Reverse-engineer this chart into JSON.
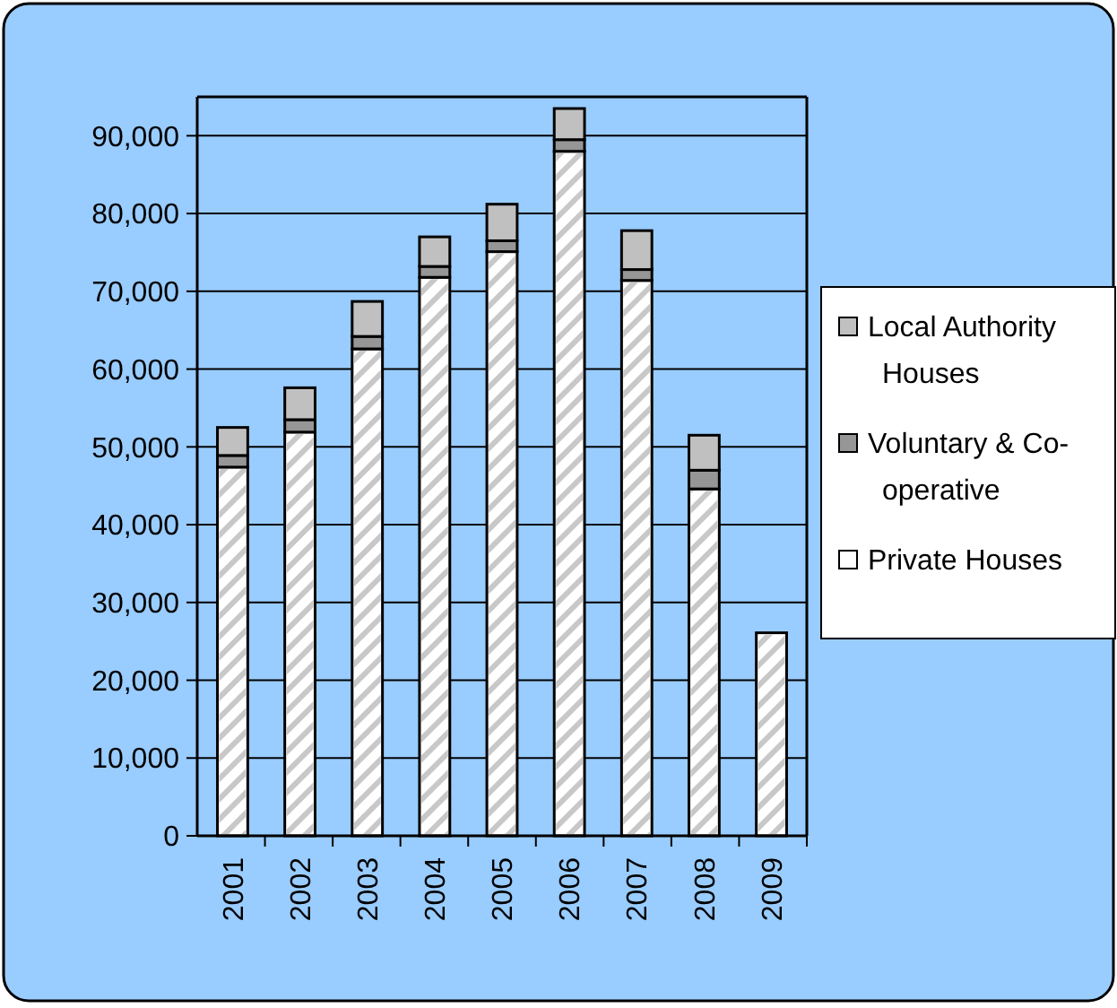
{
  "chart_data": {
    "type": "bar",
    "stacked": true,
    "categories": [
      "2001",
      "2002",
      "2003",
      "2004",
      "2005",
      "2006",
      "2007",
      "2008",
      "2009"
    ],
    "series": [
      {
        "name": "Private Houses",
        "color": "#ffffff",
        "values": [
          47400,
          51900,
          62600,
          71800,
          75100,
          88000,
          71400,
          44600,
          26100
        ]
      },
      {
        "name": "Voluntary & Co-operative",
        "color": "#969696",
        "values": [
          1500,
          1600,
          1600,
          1400,
          1400,
          1500,
          1400,
          2400,
          null
        ]
      },
      {
        "name": "Local Authority Houses",
        "color": "#c0c0c0",
        "values": [
          3600,
          4100,
          4500,
          3800,
          4700,
          4000,
          5000,
          4500,
          null
        ]
      }
    ],
    "ylim": [
      0,
      95000
    ],
    "yticks": [
      {
        "value": 0,
        "label": "0"
      },
      {
        "value": 10000,
        "label": "10,000"
      },
      {
        "value": 20000,
        "label": "20,000"
      },
      {
        "value": 30000,
        "label": "30,000"
      },
      {
        "value": 40000,
        "label": "40,000"
      },
      {
        "value": 50000,
        "label": "50,000"
      },
      {
        "value": 60000,
        "label": "60,000"
      },
      {
        "value": 70000,
        "label": "70,000"
      },
      {
        "value": 80000,
        "label": "80,000"
      },
      {
        "value": 90000,
        "label": "90,000"
      }
    ],
    "grid": "y",
    "legend": "right"
  }
}
